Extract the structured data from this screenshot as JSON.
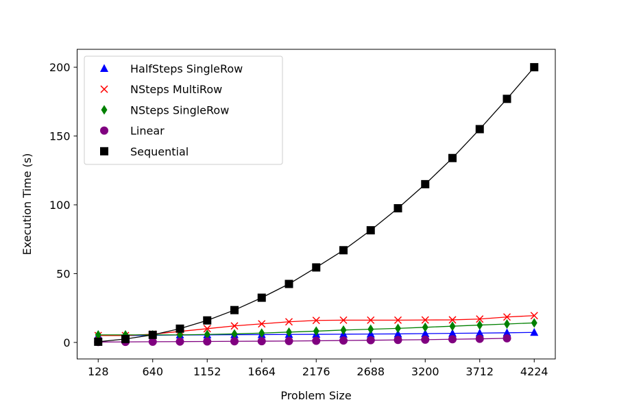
{
  "chart_data": {
    "type": "line",
    "title": "",
    "xlabel": "Problem Size",
    "ylabel": "Execution Time (s)",
    "xlim": [
      -70,
      4422
    ],
    "ylim": [
      -12,
      213
    ],
    "xticks": [
      128,
      640,
      1152,
      1664,
      2176,
      2688,
      3200,
      3712,
      4224
    ],
    "yticks": [
      0,
      50,
      100,
      150,
      200
    ],
    "grid": false,
    "legend_position": "upper left",
    "series": [
      {
        "name": "HalfSteps SingleRow",
        "color": "#0000ff",
        "marker": "triangle",
        "x": [
          128,
          384,
          640,
          896,
          1152,
          1408,
          1664,
          1920,
          2176,
          2432,
          2688,
          2944,
          3200,
          3456,
          3712,
          3968,
          4224
        ],
        "y": [
          5,
          5,
          5.2,
          5.4,
          5.5,
          5.6,
          5.7,
          5.8,
          5.9,
          6.0,
          6.1,
          6.2,
          6.4,
          6.6,
          6.8,
          7.0,
          7.3
        ]
      },
      {
        "name": "NSteps MultiRow",
        "color": "#ff0000",
        "marker": "x",
        "x": [
          128,
          384,
          640,
          896,
          1152,
          1408,
          1664,
          1920,
          2176,
          2432,
          2688,
          2944,
          3200,
          3456,
          3712,
          3968,
          4224
        ],
        "y": [
          5,
          5,
          6,
          8,
          10,
          12,
          13.5,
          15,
          16,
          16.2,
          16.2,
          16.2,
          16.3,
          16.4,
          17,
          18.5,
          19.5
        ]
      },
      {
        "name": "NSteps SingleRow",
        "color": "#008000",
        "marker": "diamond",
        "x": [
          128,
          384,
          640,
          896,
          1152,
          1408,
          1664,
          1920,
          2176,
          2432,
          2688,
          2944,
          3200,
          3456,
          3712,
          3968,
          4224
        ],
        "y": [
          5.5,
          5.5,
          5.5,
          5.5,
          5.8,
          6.2,
          6.8,
          7.5,
          8.2,
          9,
          9.6,
          10.2,
          11,
          11.8,
          12.6,
          13.4,
          14.2
        ]
      },
      {
        "name": "Linear",
        "color": "#800080",
        "marker": "circle",
        "x": [
          128,
          384,
          640,
          896,
          1152,
          1408,
          1664,
          1920,
          2176,
          2432,
          2688,
          2944,
          3200,
          3456,
          3712,
          3968
        ],
        "y": [
          0.3,
          0.4,
          0.5,
          0.6,
          0.7,
          0.8,
          0.9,
          1.0,
          1.2,
          1.4,
          1.6,
          1.8,
          2.0,
          2.3,
          2.6,
          3.0
        ]
      },
      {
        "name": "Sequential",
        "color": "#000000",
        "marker": "square",
        "x": [
          128,
          384,
          640,
          896,
          1152,
          1408,
          1664,
          1920,
          2176,
          2432,
          2688,
          2944,
          3200,
          3456,
          3712,
          3968,
          4224
        ],
        "y": [
          0.5,
          2.5,
          5.5,
          10,
          16,
          23.5,
          32.5,
          42.5,
          54.5,
          67,
          81.5,
          97.5,
          115,
          134,
          155,
          177,
          200
        ]
      }
    ]
  }
}
